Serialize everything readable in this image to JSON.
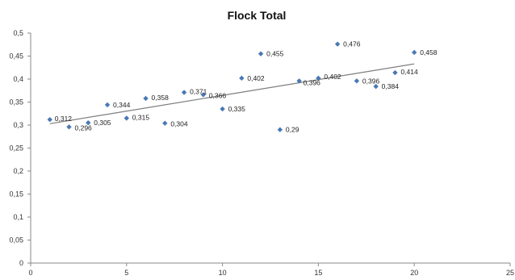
{
  "chart_data": {
    "type": "scatter",
    "title": "Flock Total",
    "xlim": [
      0,
      25
    ],
    "ylim": [
      0,
      0.5
    ],
    "x_ticks": [
      {
        "value": 0,
        "label": "0"
      },
      {
        "value": 5,
        "label": "5"
      },
      {
        "value": 10,
        "label": "10"
      },
      {
        "value": 15,
        "label": "15"
      },
      {
        "value": 20,
        "label": "20"
      },
      {
        "value": 25,
        "label": "25"
      }
    ],
    "y_ticks": [
      {
        "value": 0,
        "label": "0"
      },
      {
        "value": 0.05,
        "label": "0,05"
      },
      {
        "value": 0.1,
        "label": "0,1"
      },
      {
        "value": 0.15,
        "label": "0,15"
      },
      {
        "value": 0.2,
        "label": "0,2"
      },
      {
        "value": 0.25,
        "label": "0,25"
      },
      {
        "value": 0.3,
        "label": "0,3"
      },
      {
        "value": 0.35,
        "label": "0,35"
      },
      {
        "value": 0.4,
        "label": "0,4"
      },
      {
        "value": 0.45,
        "label": "0,45"
      },
      {
        "value": 0.5,
        "label": "0,5"
      }
    ],
    "points": [
      {
        "x": 1,
        "y": 0.312,
        "label": "0,312"
      },
      {
        "x": 2,
        "y": 0.296,
        "label": "0,296"
      },
      {
        "x": 3,
        "y": 0.305,
        "label": "0,305"
      },
      {
        "x": 4,
        "y": 0.344,
        "label": "0,344"
      },
      {
        "x": 5,
        "y": 0.315,
        "label": "0,315"
      },
      {
        "x": 6,
        "y": 0.358,
        "label": "0,358"
      },
      {
        "x": 7,
        "y": 0.304,
        "label": "0,304"
      },
      {
        "x": 8,
        "y": 0.371,
        "label": "0,371"
      },
      {
        "x": 9,
        "y": 0.366,
        "label": "0,366"
      },
      {
        "x": 10,
        "y": 0.335,
        "label": "0,335"
      },
      {
        "x": 11,
        "y": 0.402,
        "label": "0,402"
      },
      {
        "x": 12,
        "y": 0.455,
        "label": "0,455"
      },
      {
        "x": 13,
        "y": 0.29,
        "label": "0,29"
      },
      {
        "x": 14,
        "y": 0.396,
        "label": "0,396"
      },
      {
        "x": 15,
        "y": 0.402,
        "label": "0,402"
      },
      {
        "x": 16,
        "y": 0.476,
        "label": "0,476"
      },
      {
        "x": 17,
        "y": 0.396,
        "label": "0,396"
      },
      {
        "x": 18,
        "y": 0.384,
        "label": "0,384"
      },
      {
        "x": 19,
        "y": 0.414,
        "label": "0,414"
      },
      {
        "x": 20,
        "y": 0.458,
        "label": "0,458"
      }
    ],
    "trendline": {
      "type": "linear",
      "from": {
        "x": 1,
        "y": 0.303
      },
      "to": {
        "x": 20,
        "y": 0.433
      }
    },
    "grid": false,
    "legend": "none",
    "colors": {
      "marker": "#4a78b5",
      "trendline": "#7d7d7d",
      "axis": "#8a8a8a",
      "text": "#333333"
    }
  }
}
